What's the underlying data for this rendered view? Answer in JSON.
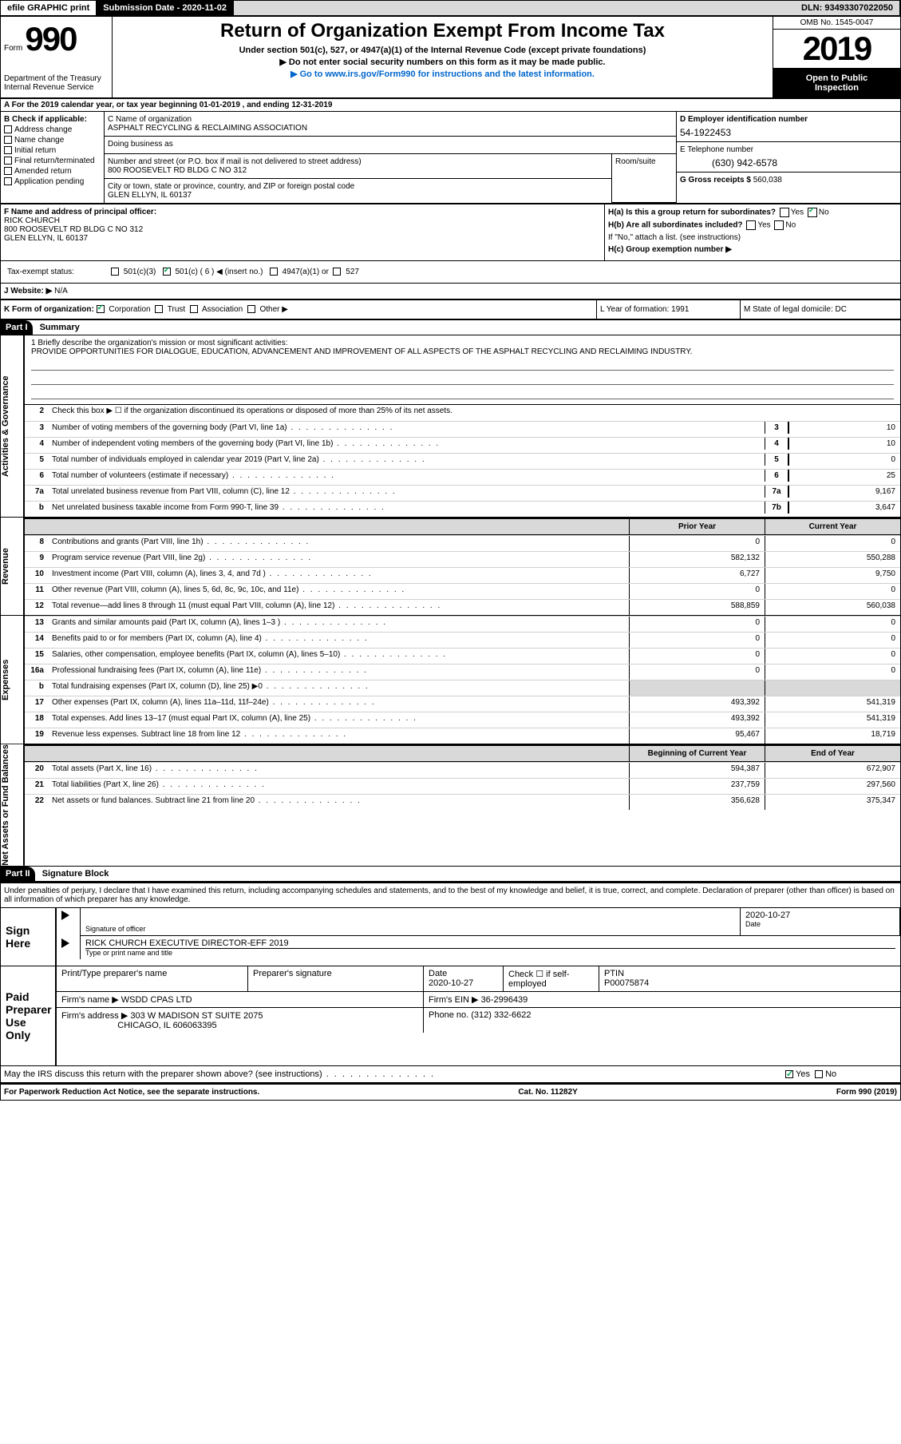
{
  "topbar": {
    "efile": "efile GRAPHIC print",
    "submission": "Submission Date - 2020-11-02",
    "dln": "DLN: 93493307022050"
  },
  "header": {
    "form_label": "Form",
    "form_num": "990",
    "title": "Return of Organization Exempt From Income Tax",
    "subtitle": "Under section 501(c), 527, or 4947(a)(1) of the Internal Revenue Code (except private foundations)",
    "sub2": "▶ Do not enter social security numbers on this form as it may be made public.",
    "goto": "▶ Go to www.irs.gov/Form990 for instructions and the latest information.",
    "dept": "Department of the Treasury\nInternal Revenue Service",
    "omb": "OMB No. 1545-0047",
    "year": "2019",
    "otp1": "Open to Public",
    "otp2": "Inspection"
  },
  "row_a": "A For the 2019 calendar year, or tax year beginning 01-01-2019  , and ending 12-31-2019",
  "col_b": {
    "label": "B Check if applicable:",
    "items": [
      "Address change",
      "Name change",
      "Initial return",
      "Final return/terminated",
      "Amended return",
      "Application pending"
    ]
  },
  "col_c": {
    "name_label": "C Name of organization",
    "name": "ASPHALT RECYCLING & RECLAIMING ASSOCIATION",
    "dba_label": "Doing business as",
    "addr_label": "Number and street (or P.O. box if mail is not delivered to street address)",
    "addr": "800 ROOSEVELT RD BLDG C NO 312",
    "room_label": "Room/suite",
    "city_label": "City or town, state or province, country, and ZIP or foreign postal code",
    "city": "GLEN ELLYN, IL  60137"
  },
  "col_d": {
    "ein_label": "D Employer identification number",
    "ein": "54-1922453",
    "phone_label": "E Telephone number",
    "phone": "(630) 942-6578",
    "gross_label": "G Gross receipts $",
    "gross": "560,038"
  },
  "col_f": {
    "label": "F  Name and address of principal officer:",
    "name": "RICK CHURCH",
    "addr": "800 ROOSEVELT RD BLDG C NO 312",
    "city": "GLEN ELLYN, IL  60137"
  },
  "col_h": {
    "ha": "H(a)  Is this a group return for subordinates?",
    "hb": "H(b)  Are all subordinates included?",
    "hb_note": "If \"No,\" attach a list. (see instructions)",
    "hc": "H(c)  Group exemption number ▶"
  },
  "tax_exempt": {
    "label": "Tax-exempt status:",
    "c3": "501(c)(3)",
    "c": "501(c) ( 6 ) ◀ (insert no.)",
    "a1": "4947(a)(1) or",
    "527": "527"
  },
  "row_j": {
    "label": "J   Website: ▶",
    "val": "N/A"
  },
  "row_k": {
    "label": "K Form of organization:",
    "corp": "Corporation",
    "trust": "Trust",
    "assoc": "Association",
    "other": "Other ▶",
    "l": "L Year of formation: 1991",
    "m": "M State of legal domicile: DC"
  },
  "part1": {
    "header": "Part I",
    "title": "Summary"
  },
  "mission": {
    "label": "1  Briefly describe the organization's mission or most significant activities:",
    "text": "PROVIDE OPPORTUNITIES FOR DIALOGUE, EDUCATION, ADVANCEMENT AND IMPROVEMENT OF ALL ASPECTS OF THE ASPHALT RECYCLING AND RECLAIMING INDUSTRY."
  },
  "check2": "Check this box ▶ ☐  if the organization discontinued its operations or disposed of more than 25% of its net assets.",
  "gov_lines": [
    {
      "n": "3",
      "t": "Number of voting members of the governing body (Part VI, line 1a)",
      "box": "3",
      "v": "10"
    },
    {
      "n": "4",
      "t": "Number of independent voting members of the governing body (Part VI, line 1b)",
      "box": "4",
      "v": "10"
    },
    {
      "n": "5",
      "t": "Total number of individuals employed in calendar year 2019 (Part V, line 2a)",
      "box": "5",
      "v": "0"
    },
    {
      "n": "6",
      "t": "Total number of volunteers (estimate if necessary)",
      "box": "6",
      "v": "25"
    },
    {
      "n": "7a",
      "t": "Total unrelated business revenue from Part VIII, column (C), line 12",
      "box": "7a",
      "v": "9,167"
    },
    {
      "n": "b",
      "t": "Net unrelated business taxable income from Form 990-T, line 39",
      "box": "7b",
      "v": "3,647"
    }
  ],
  "rev_header": {
    "h1": "Prior Year",
    "h2": "Current Year"
  },
  "rev_lines": [
    {
      "n": "8",
      "t": "Contributions and grants (Part VIII, line 1h)",
      "c1": "0",
      "c2": "0"
    },
    {
      "n": "9",
      "t": "Program service revenue (Part VIII, line 2g)",
      "c1": "582,132",
      "c2": "550,288"
    },
    {
      "n": "10",
      "t": "Investment income (Part VIII, column (A), lines 3, 4, and 7d )",
      "c1": "6,727",
      "c2": "9,750"
    },
    {
      "n": "11",
      "t": "Other revenue (Part VIII, column (A), lines 5, 6d, 8c, 9c, 10c, and 11e)",
      "c1": "0",
      "c2": "0"
    },
    {
      "n": "12",
      "t": "Total revenue—add lines 8 through 11 (must equal Part VIII, column (A), line 12)",
      "c1": "588,859",
      "c2": "560,038"
    }
  ],
  "exp_lines": [
    {
      "n": "13",
      "t": "Grants and similar amounts paid (Part IX, column (A), lines 1–3 )",
      "c1": "0",
      "c2": "0"
    },
    {
      "n": "14",
      "t": "Benefits paid to or for members (Part IX, column (A), line 4)",
      "c1": "0",
      "c2": "0"
    },
    {
      "n": "15",
      "t": "Salaries, other compensation, employee benefits (Part IX, column (A), lines 5–10)",
      "c1": "0",
      "c2": "0"
    },
    {
      "n": "16a",
      "t": "Professional fundraising fees (Part IX, column (A), line 11e)",
      "c1": "0",
      "c2": "0"
    },
    {
      "n": "b",
      "t": "Total fundraising expenses (Part IX, column (D), line 25) ▶0",
      "c1": "",
      "c2": "",
      "gray": true
    },
    {
      "n": "17",
      "t": "Other expenses (Part IX, column (A), lines 11a–11d, 11f–24e)",
      "c1": "493,392",
      "c2": "541,319"
    },
    {
      "n": "18",
      "t": "Total expenses. Add lines 13–17 (must equal Part IX, column (A), line 25)",
      "c1": "493,392",
      "c2": "541,319"
    },
    {
      "n": "19",
      "t": "Revenue less expenses. Subtract line 18 from line 12",
      "c1": "95,467",
      "c2": "18,719"
    }
  ],
  "net_header": {
    "h1": "Beginning of Current Year",
    "h2": "End of Year"
  },
  "net_lines": [
    {
      "n": "20",
      "t": "Total assets (Part X, line 16)",
      "c1": "594,387",
      "c2": "672,907"
    },
    {
      "n": "21",
      "t": "Total liabilities (Part X, line 26)",
      "c1": "237,759",
      "c2": "297,560"
    },
    {
      "n": "22",
      "t": "Net assets or fund balances. Subtract line 21 from line 20",
      "c1": "356,628",
      "c2": "375,347"
    }
  ],
  "part2": {
    "header": "Part II",
    "title": "Signature Block"
  },
  "penalties": "Under penalties of perjury, I declare that I have examined this return, including accompanying schedules and statements, and to the best of my knowledge and belief, it is true, correct, and complete. Declaration of preparer (other than officer) is based on all information of which preparer has any knowledge.",
  "sign": {
    "label": "Sign Here",
    "sig_label": "Signature of officer",
    "date_label": "Date",
    "date": "2020-10-27",
    "name": "RICK CHURCH  EXECUTIVE DIRECTOR-EFF 2019",
    "name_label": "Type or print name and title"
  },
  "paid": {
    "label": "Paid Preparer Use Only",
    "h1": "Print/Type preparer's name",
    "h2": "Preparer's signature",
    "h3": "Date",
    "date": "2020-10-27",
    "h4": "Check ☐ if self-employed",
    "ptin_label": "PTIN",
    "ptin": "P00075874",
    "firm_name_label": "Firm's name    ▶",
    "firm_name": "WSDD CPAS LTD",
    "firm_ein_label": "Firm's EIN ▶",
    "firm_ein": "36-2996439",
    "firm_addr_label": "Firm's address ▶",
    "firm_addr": "303 W MADISON ST SUITE 2075",
    "firm_city": "CHICAGO, IL  606063395",
    "phone_label": "Phone no.",
    "phone": "(312) 332-6622"
  },
  "discuss": "May the IRS discuss this return with the preparer shown above? (see instructions)",
  "footer": {
    "left": "For Paperwork Reduction Act Notice, see the separate instructions.",
    "mid": "Cat. No. 11282Y",
    "right": "Form 990 (2019)"
  },
  "vtabs": {
    "gov": "Activities & Governance",
    "rev": "Revenue",
    "exp": "Expenses",
    "net": "Net Assets or Fund Balances"
  }
}
